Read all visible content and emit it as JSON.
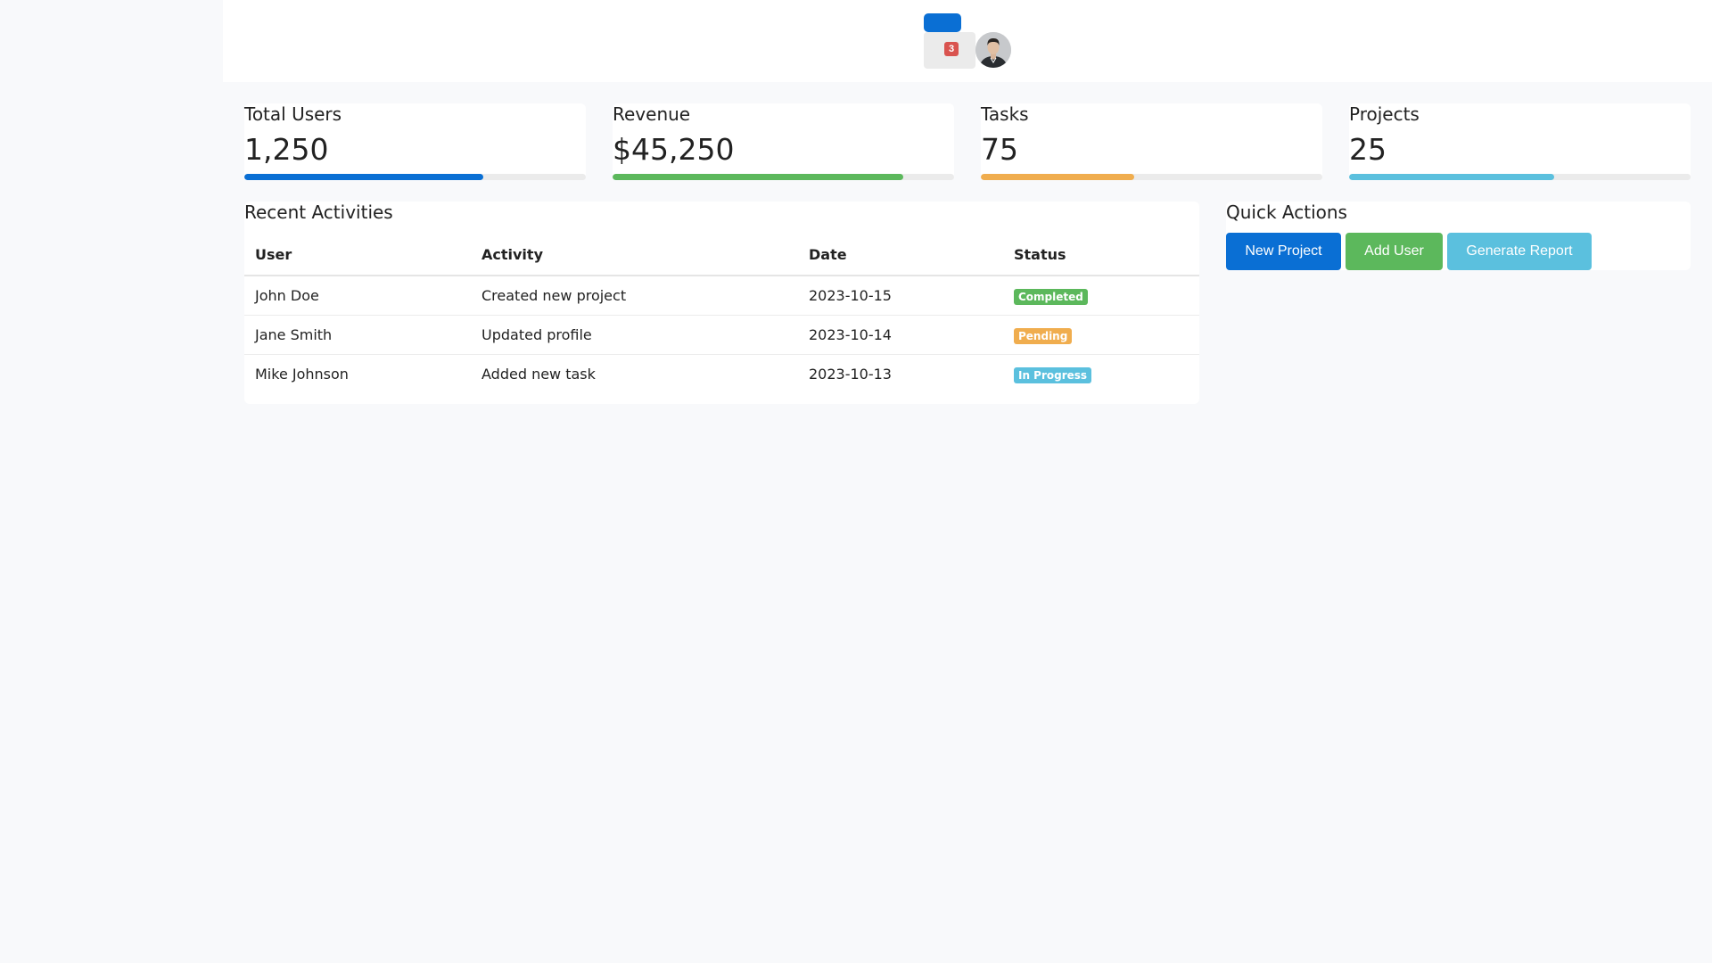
{
  "header": {
    "notification_count": "3"
  },
  "stats": [
    {
      "title": "Total Users",
      "value": "1,250",
      "progress": 0.7,
      "color": "#0a6fd4"
    },
    {
      "title": "Revenue",
      "value": "$45,250",
      "progress": 0.85,
      "color": "#5cb85c"
    },
    {
      "title": "Tasks",
      "value": "75",
      "progress": 0.45,
      "color": "#f0ad4e"
    },
    {
      "title": "Projects",
      "value": "25",
      "progress": 0.6,
      "color": "#5bc0de"
    }
  ],
  "activities": {
    "title": "Recent Activities",
    "columns": [
      "User",
      "Activity",
      "Date",
      "Status"
    ],
    "rows": [
      {
        "user": "John Doe",
        "activity": "Created new project",
        "date": "2023-10-15",
        "status": "Completed",
        "status_color": "#5cb85c"
      },
      {
        "user": "Jane Smith",
        "activity": "Updated profile",
        "date": "2023-10-14",
        "status": "Pending",
        "status_color": "#f0ad4e"
      },
      {
        "user": "Mike Johnson",
        "activity": "Added new task",
        "date": "2023-10-13",
        "status": "In Progress",
        "status_color": "#5bc0de"
      }
    ]
  },
  "quick_actions": {
    "title": "Quick Actions",
    "buttons": [
      {
        "label": "New Project",
        "color": "#0a6fd4"
      },
      {
        "label": "Add User",
        "color": "#5cb85c"
      },
      {
        "label": "Generate Report",
        "color": "#5bc0de"
      }
    ]
  }
}
